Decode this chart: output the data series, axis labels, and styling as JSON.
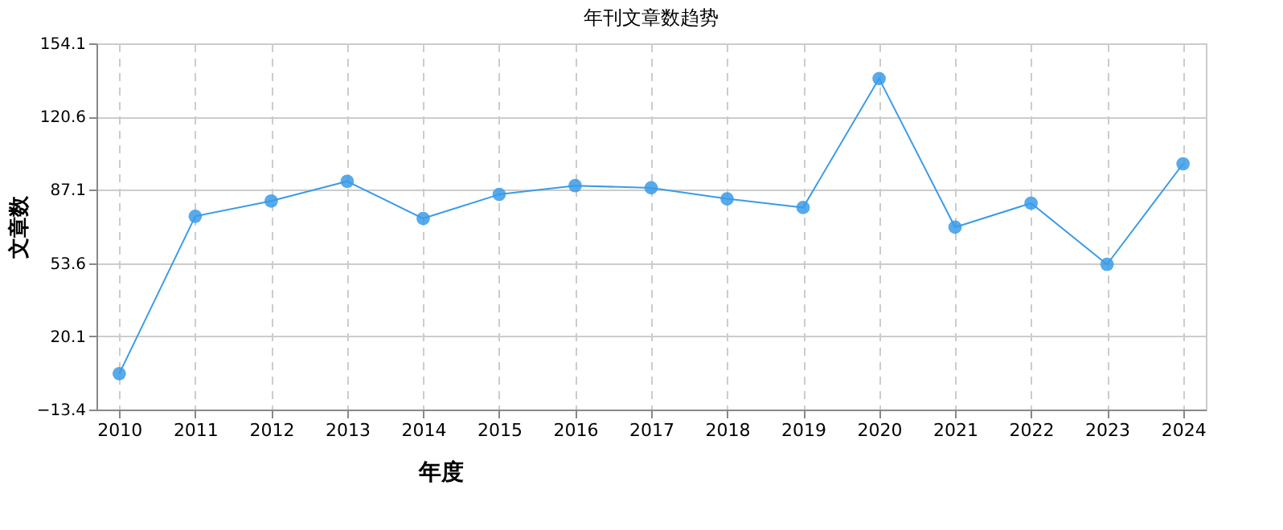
{
  "chart_data": {
    "type": "line",
    "title": "年刊文章数趋势",
    "xlabel": "年度",
    "ylabel": "文章数",
    "categories": [
      "2010",
      "2011",
      "2012",
      "2013",
      "2014",
      "2015",
      "2016",
      "2017",
      "2018",
      "2019",
      "2020",
      "2021",
      "2022",
      "2023",
      "2024"
    ],
    "series": [
      {
        "color": "#3a9be8",
        "values": [
          3,
          75,
          82,
          91,
          74,
          85,
          89,
          88,
          83,
          79,
          138,
          70,
          81,
          53,
          99
        ]
      }
    ],
    "ylim": [
      -13.4,
      154.1
    ],
    "yticks": [
      -13.4,
      20.1,
      53.6,
      87.1,
      120.6,
      154.1
    ],
    "grid": true,
    "marker": "circle",
    "line_style": "solid"
  }
}
